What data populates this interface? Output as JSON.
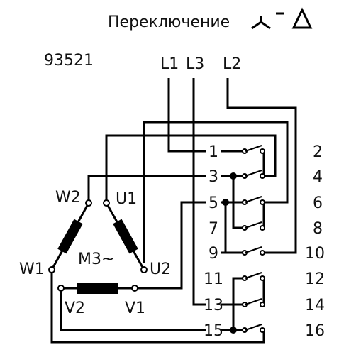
{
  "title": "Переключение",
  "part_number": "93521",
  "motor_label": "M3~",
  "lines": [
    "L1",
    "L3",
    "L2"
  ],
  "windings": [
    "W2",
    "U1",
    "W1",
    "U2",
    "V2",
    "V1"
  ],
  "contacts_left": [
    "1",
    "3",
    "5",
    "7",
    "9",
    "11",
    "13",
    "15"
  ],
  "contacts_right": [
    "2",
    "4",
    "6",
    "8",
    "10",
    "12",
    "14",
    "16"
  ],
  "symbols": {
    "star": "star-symbol-icon",
    "dash": "dash-icon",
    "delta": "delta-symbol-icon"
  }
}
